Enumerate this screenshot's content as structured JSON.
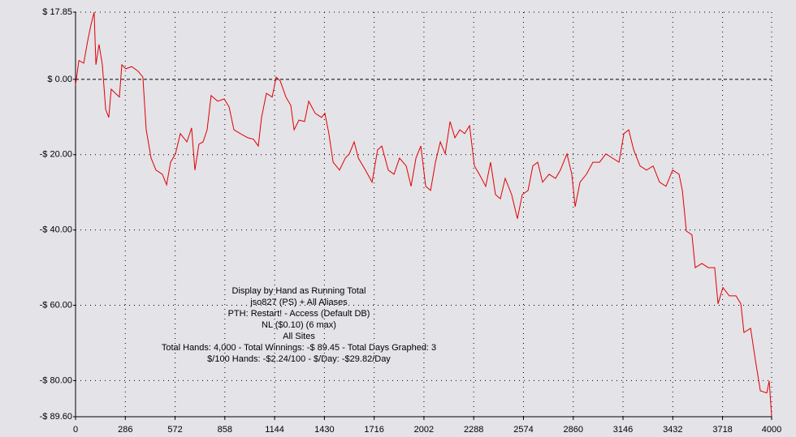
{
  "chart_data": {
    "type": "line",
    "annotations": [
      "Display by Hand as Running Total",
      "jso827 (PS) + All Aliases",
      "PTH: Restart! - Access (Default DB)",
      "NL ($0.10) (6 max)",
      "All Sites",
      "Total Hands: 4,000 - Total Winnings: -$ 89.45 - Total Days Graphed: 3",
      "$/100 Hands: -$2.24/100 - $/Day: -$29.82/Day"
    ],
    "xlim": [
      0,
      4000
    ],
    "xticks": [
      0,
      286,
      572,
      858,
      1144,
      1430,
      1716,
      2002,
      2288,
      2574,
      2860,
      3146,
      3432,
      3718,
      4000
    ],
    "ylim": [
      -89.6,
      17.85
    ],
    "yticks": [
      {
        "value": 17.85,
        "label": "$ 17.85"
      },
      {
        "value": 0,
        "label": "$ 0.00"
      },
      {
        "value": -20,
        "label": "-$ 20.00"
      },
      {
        "value": -40,
        "label": "-$ 40.00"
      },
      {
        "value": -60,
        "label": "-$ 60.00"
      },
      {
        "value": -80,
        "label": "-$ 80.00"
      },
      {
        "value": -89.6,
        "label": "-$ 89.60"
      }
    ],
    "grid": true,
    "series": [
      {
        "name": "Running Total",
        "color": "#e00000",
        "x": [
          0,
          19,
          47,
          70,
          89,
          107,
          117,
          135,
          154,
          173,
          191,
          205,
          229,
          252,
          266,
          289,
          322,
          359,
          387,
          406,
          434,
          462,
          499,
          523,
          546,
          574,
          602,
          640,
          667,
          686,
          709,
          733,
          756,
          779,
          817,
          854,
          882,
          910,
          947,
          990,
          1022,
          1050,
          1069,
          1097,
          1130,
          1153,
          1176,
          1209,
          1237,
          1256,
          1284,
          1316,
          1340,
          1377,
          1414,
          1433,
          1456,
          1480,
          1517,
          1550,
          1573,
          1601,
          1625,
          1666,
          1704,
          1736,
          1760,
          1797,
          1830,
          1862,
          1900,
          1928,
          1956,
          1984,
          2012,
          2040,
          2068,
          2096,
          2124,
          2152,
          2180,
          2208,
          2236,
          2264,
          2292,
          2320,
          2357,
          2385,
          2413,
          2441,
          2469,
          2506,
          2539,
          2567,
          2600,
          2628,
          2656,
          2684,
          2721,
          2758,
          2786,
          2824,
          2852,
          2871,
          2899,
          2936,
          2973,
          3011,
          3048,
          3085,
          3123,
          3151,
          3179,
          3207,
          3244,
          3281,
          3319,
          3356,
          3393,
          3431,
          3468,
          3487,
          3510,
          3542,
          3561,
          3599,
          3636,
          3673,
          3692,
          3720,
          3757,
          3795,
          3823,
          3841,
          3879,
          3907,
          3935,
          3972,
          3986,
          4000
        ],
        "values": [
          -1.5,
          5,
          4.3,
          10.3,
          14.6,
          17.85,
          3.9,
          9.3,
          3.9,
          -8,
          -10.1,
          -2.6,
          -3.7,
          -4.7,
          3.9,
          2.8,
          3.4,
          2.2,
          0.6,
          -13.4,
          -20.9,
          -24.1,
          -25.2,
          -28,
          -22,
          -19.8,
          -14.4,
          -16.6,
          -12.9,
          -24.1,
          -17.2,
          -16.6,
          -13.4,
          -4.3,
          -5.8,
          -5.2,
          -7.3,
          -13.4,
          -14.4,
          -15.5,
          -15.9,
          -17.7,
          -10.1,
          -3.7,
          -4.7,
          0.6,
          -0.4,
          -4.7,
          -6.9,
          -13.4,
          -10.8,
          -11.2,
          -5.8,
          -9,
          -10.1,
          -9,
          -14.4,
          -22,
          -24.1,
          -20.9,
          -19.8,
          -16.6,
          -20.9,
          -24.1,
          -27.3,
          -18.7,
          -17.7,
          -24.1,
          -25.2,
          -20.9,
          -23,
          -28.4,
          -20.9,
          -17.7,
          -28.4,
          -29.5,
          -22,
          -16.6,
          -19.8,
          -11.2,
          -15.5,
          -13.4,
          -14.4,
          -12.3,
          -23,
          -25.2,
          -28.4,
          -22,
          -30.6,
          -31.7,
          -26.3,
          -30.6,
          -37,
          -30.6,
          -29.5,
          -23,
          -22,
          -27.3,
          -25.2,
          -26.3,
          -24.1,
          -19.8,
          -25.2,
          -33.8,
          -27.3,
          -25.2,
          -22,
          -22,
          -19.8,
          -20.9,
          -22,
          -14.4,
          -13.4,
          -18.7,
          -23,
          -24.1,
          -23,
          -27.3,
          -28.4,
          -24.1,
          -25.2,
          -29.5,
          -40.3,
          -41.3,
          -50,
          -48.9,
          -50,
          -50,
          -59.6,
          -55.3,
          -57.5,
          -57.5,
          -59.6,
          -67.2,
          -66.1,
          -74.7,
          -82.7,
          -83.3,
          -80.1,
          -89.45
        ]
      }
    ]
  }
}
